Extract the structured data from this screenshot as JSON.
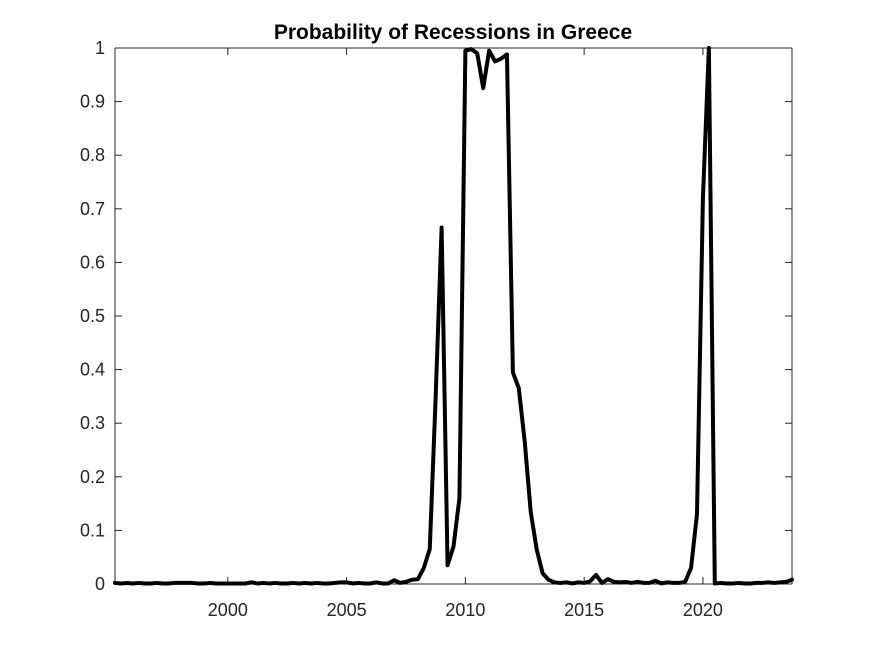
{
  "chart_data": {
    "type": "line",
    "title": "Probability of Recessions in Greece",
    "xlabel": "",
    "ylabel": "",
    "xlim": [
      1995.25,
      2023.75
    ],
    "ylim": [
      0,
      1
    ],
    "x_ticks": [
      2000,
      2005,
      2010,
      2015,
      2020
    ],
    "y_ticks": [
      0,
      0.1,
      0.2,
      0.3,
      0.4,
      0.5,
      0.6,
      0.7,
      0.8,
      0.9,
      1
    ],
    "x_tick_labels": [
      "2000",
      "2005",
      "2010",
      "2015",
      "2020"
    ],
    "y_tick_labels": [
      "0",
      "0.1",
      "0.2",
      "0.3",
      "0.4",
      "0.5",
      "0.6",
      "0.7",
      "0.8",
      "0.9",
      "1"
    ],
    "grid": false,
    "series": [
      {
        "color": "#000000",
        "x": [
          1995.25,
          1995.5,
          1995.75,
          1996,
          1996.25,
          1996.5,
          1996.75,
          1997,
          1997.25,
          1997.5,
          1997.75,
          1998,
          1998.25,
          1998.5,
          1998.75,
          1999,
          1999.25,
          1999.5,
          1999.75,
          2000,
          2000.25,
          2000.5,
          2000.75,
          2001,
          2001.25,
          2001.5,
          2001.75,
          2002,
          2002.25,
          2002.5,
          2002.75,
          2003,
          2003.25,
          2003.5,
          2003.75,
          2004,
          2004.25,
          2004.5,
          2004.75,
          2005,
          2005.25,
          2005.5,
          2005.75,
          2006,
          2006.25,
          2006.5,
          2006.75,
          2007,
          2007.25,
          2007.5,
          2007.75,
          2008,
          2008.25,
          2008.5,
          2008.75,
          2009,
          2009.25,
          2009.5,
          2009.75,
          2010,
          2010.25,
          2010.5,
          2010.75,
          2011,
          2011.25,
          2011.5,
          2011.75,
          2012,
          2012.25,
          2012.5,
          2012.75,
          2013,
          2013.25,
          2013.5,
          2013.75,
          2014,
          2014.25,
          2014.5,
          2014.75,
          2015,
          2015.25,
          2015.5,
          2015.75,
          2016,
          2016.25,
          2016.5,
          2016.75,
          2017,
          2017.25,
          2017.5,
          2017.75,
          2018,
          2018.25,
          2018.5,
          2018.75,
          2019,
          2019.25,
          2019.5,
          2019.75,
          2020,
          2020.25,
          2020.5,
          2020.75,
          2021,
          2021.25,
          2021.5,
          2021.75,
          2022,
          2022.25,
          2022.5,
          2022.75,
          2023,
          2023.25,
          2023.5,
          2023.75
        ],
        "y": [
          0.002,
          0.001,
          0.002,
          0.001,
          0.002,
          0.001,
          0.001,
          0.002,
          0.001,
          0.001,
          0.002,
          0.002,
          0.002,
          0.002,
          0.001,
          0.001,
          0.002,
          0.001,
          0.001,
          0.001,
          0.001,
          0.001,
          0.001,
          0.003,
          0.001,
          0.002,
          0.001,
          0.002,
          0.001,
          0.001,
          0.002,
          0.001,
          0.002,
          0.001,
          0.002,
          0.001,
          0.001,
          0.002,
          0.003,
          0.003,
          0.001,
          0.002,
          0.001,
          0.001,
          0.003,
          0.001,
          0.001,
          0.007,
          0.002,
          0.004,
          0.008,
          0.009,
          0.03,
          0.065,
          0.35,
          0.665,
          0.035,
          0.07,
          0.16,
          0.995,
          0.998,
          0.99,
          0.925,
          0.995,
          0.975,
          0.98,
          0.988,
          0.395,
          0.365,
          0.265,
          0.135,
          0.065,
          0.02,
          0.008,
          0.003,
          0.002,
          0.003,
          0.001,
          0.003,
          0.002,
          0.005,
          0.017,
          0.002,
          0.009,
          0.004,
          0.003,
          0.004,
          0.002,
          0.004,
          0.002,
          0.002,
          0.006,
          0.001,
          0.003,
          0.002,
          0.002,
          0.004,
          0.03,
          0.13,
          0.72,
          1.0,
          0.001,
          0.002,
          0.001,
          0.001,
          0.002,
          0.001,
          0.001,
          0.002,
          0.002,
          0.003,
          0.002,
          0.003,
          0.004,
          0.008
        ]
      }
    ]
  }
}
